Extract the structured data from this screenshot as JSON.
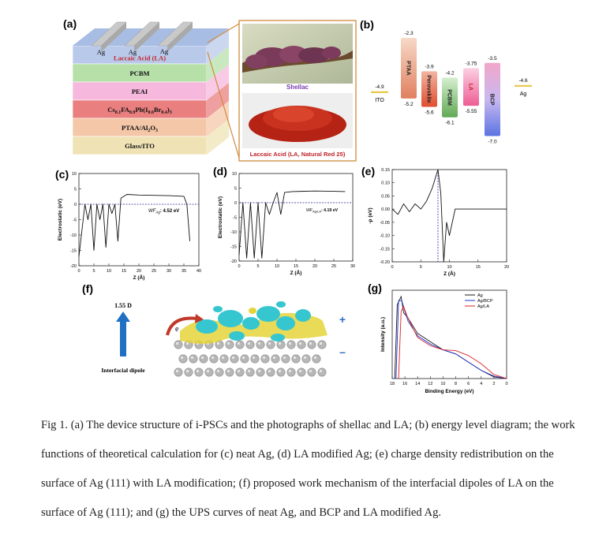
{
  "panels": {
    "a": {
      "tag": "(a)",
      "electrodes": [
        "Ag",
        "Ag",
        "Ag"
      ],
      "layers": [
        {
          "label": "Laccaic Acid (LA)",
          "color": "#b9c9ea",
          "text_color": "#c0252a"
        },
        {
          "label": "PCBM",
          "color": "#b7e0a9",
          "text_color": "#111111"
        },
        {
          "label": "PEAI",
          "color": "#f6b8dc",
          "text_color": "#111111"
        },
        {
          "label_parts": [
            "Cs",
            "0.1",
            "FA",
            "0.9",
            "Pb(I",
            "0.6",
            "Br",
            "0.4",
            ")",
            "3"
          ],
          "color": "#e97f7f",
          "text_color": "#111111"
        },
        {
          "label_parts": [
            "PTAA/Al",
            "2",
            "O",
            "3"
          ],
          "color": "#f4c7a8",
          "text_color": "#111111"
        },
        {
          "label": "Glass/ITO",
          "color": "#efe3b5",
          "text_color": "#111111"
        }
      ],
      "photo_labels": {
        "top": "Shellac",
        "bottom": "Laccaic Acid (LA, Natural Red 25)"
      }
    },
    "b": {
      "tag": "(b)",
      "levels": [
        {
          "name": "ITO",
          "top": -4.9,
          "bottom": null,
          "top_label": "-4.9",
          "color": "#e8c84a"
        },
        {
          "name": "PTAA",
          "top": -2.3,
          "bottom": -5.2,
          "top_label": "-2.3",
          "bottom_label": "-5.2",
          "color": "#e78d6c"
        },
        {
          "name": "Perovskite",
          "top": -3.9,
          "bottom": -5.6,
          "top_label": "-3.9",
          "bottom_label": "-5.6",
          "color": "#e65a3b"
        },
        {
          "name": "PCBM",
          "top": -4.2,
          "bottom": -6.1,
          "top_label": "-4.2",
          "bottom_label": "-6.1",
          "color": "#77b86b"
        },
        {
          "name": "LA",
          "top": -3.75,
          "bottom": -5.55,
          "top_label": "-3.75",
          "bottom_label": "-5.55",
          "color": "#f06fa0"
        },
        {
          "name": "BCP",
          "top": -3.5,
          "bottom": -7.0,
          "top_label": "-3.5",
          "bottom_label": "-7.0",
          "color": "#6c7fe0"
        },
        {
          "name": "Ag",
          "top": -4.6,
          "bottom": null,
          "top_label": "-4.6",
          "color": "#e8c84a"
        }
      ]
    },
    "c": {
      "tag": "(c)",
      "ylabel": "Electrostatic (eV)",
      "xlabel": "Z (Å)",
      "annotation": "WF",
      "annotation_sub": "Ag",
      "annotation_value": ": 4.52 eV",
      "xticks": [
        "0",
        "5",
        "10",
        "15",
        "20",
        "25",
        "30",
        "35",
        "40"
      ],
      "yticks": [
        "10",
        "5",
        "0",
        "-5",
        "-10",
        "-15",
        "-20"
      ]
    },
    "d": {
      "tag": "(d)",
      "ylabel": "Electrostatic (eV)",
      "xlabel": "Z (Å)",
      "annotation": "WF",
      "annotation_sub": "Ag/LA",
      "annotation_value": ": 4.19 eV",
      "xticks": [
        "0",
        "5",
        "10",
        "15",
        "20",
        "25",
        "30"
      ],
      "yticks": [
        "10",
        "5",
        "0",
        "-5",
        "-10",
        "-15",
        "-20"
      ]
    },
    "e": {
      "tag": "(e)",
      "ylabel": "-ρ (eV)",
      "xlabel": "Z (Å)",
      "xticks": [
        "0",
        "5",
        "10",
        "15",
        "20"
      ],
      "yticks": [
        "0.15",
        "0.10",
        "0.05",
        "0.00",
        "-0.05",
        "-0.10",
        "-0.15",
        "-0.20"
      ]
    },
    "f": {
      "tag": "(f)",
      "dipole_value": "1.55 D",
      "dipole_label": "Interfacial dipole",
      "electron": "e",
      "plus": "+",
      "minus": "–"
    },
    "g": {
      "tag": "(g)",
      "ylabel": "Intensity (a.u.)",
      "xlabel": "Binding Energy (eV)",
      "xticks": [
        "18",
        "16",
        "14",
        "12",
        "10",
        "8",
        "6",
        "4",
        "2",
        "0"
      ],
      "legend": [
        {
          "name": "Ag",
          "color": "#1a1a1a"
        },
        {
          "name": "Ag/BCP",
          "color": "#2233cc"
        },
        {
          "name": "Ag/LA",
          "color": "#dd2222"
        }
      ]
    }
  },
  "chart_data": [
    {
      "type": "line",
      "panel": "c",
      "x": [
        0,
        2,
        3,
        4,
        5,
        6,
        7,
        8,
        9,
        10,
        11,
        12,
        13,
        14,
        16,
        20,
        25,
        30,
        35,
        36,
        37
      ],
      "y": [
        -17,
        0,
        -5,
        0,
        -15,
        0,
        -5,
        0,
        -14,
        0,
        -3,
        0,
        -12,
        2,
        3.2,
        3,
        2.9,
        2.8,
        2.6,
        0,
        -12
      ],
      "xlim": [
        0,
        40
      ],
      "ylim": [
        -20,
        10
      ],
      "reference_y": 0
    },
    {
      "type": "line",
      "panel": "d",
      "x": [
        0,
        1,
        2,
        3,
        4,
        5,
        6,
        7,
        8,
        9,
        10,
        11,
        12,
        14,
        20,
        25,
        28
      ],
      "y": [
        -18,
        0,
        -19,
        0,
        -19,
        0,
        -19,
        0,
        -4,
        0,
        3.5,
        -4,
        3.5,
        3.8,
        4,
        3.9,
        3.8
      ],
      "xlim": [
        0,
        30
      ],
      "ylim": [
        -20,
        10
      ],
      "reference_y": 0
    },
    {
      "type": "line",
      "panel": "e",
      "x": [
        0,
        1,
        2,
        3,
        4,
        5,
        6,
        7,
        8,
        8.5,
        9,
        9.5,
        10,
        11,
        12,
        20
      ],
      "y": [
        0,
        -0.02,
        0.02,
        -0.01,
        0.02,
        0.0,
        0.03,
        0.08,
        0.15,
        0.06,
        -0.2,
        -0.05,
        -0.1,
        0,
        0,
        0
      ],
      "xlim": [
        0,
        20
      ],
      "ylim": [
        -0.2,
        0.15
      ],
      "reference_x": 8
    },
    {
      "type": "line",
      "panel": "g",
      "x_reversed": true,
      "xlim": [
        18,
        0
      ],
      "series": [
        {
          "name": "Ag",
          "x": [
            17.6,
            17.2,
            16.6,
            16.2,
            15.6,
            14,
            12,
            10,
            8,
            6,
            4,
            2,
            0
          ],
          "y": [
            0,
            0.9,
            1.0,
            0.8,
            0.75,
            0.55,
            0.45,
            0.35,
            0.3,
            0.2,
            0.1,
            0.02,
            0
          ]
        },
        {
          "name": "Ag/BCP",
          "x": [
            17.4,
            17.0,
            16.5,
            16.0,
            15.5,
            14,
            12,
            10,
            8,
            6,
            4,
            2,
            0
          ],
          "y": [
            0,
            0.95,
            0.95,
            0.82,
            0.7,
            0.52,
            0.42,
            0.35,
            0.3,
            0.2,
            0.1,
            0.03,
            0
          ]
        },
        {
          "name": "Ag/LA",
          "x": [
            17.0,
            16.6,
            16.2,
            15.6,
            14,
            12,
            10,
            8,
            6,
            4,
            2,
            0
          ],
          "y": [
            0,
            0.82,
            0.88,
            0.75,
            0.5,
            0.4,
            0.35,
            0.34,
            0.28,
            0.18,
            0.05,
            0
          ]
        }
      ]
    }
  ],
  "caption": "Fig 1. (a) The device structure of i-PSCs and the photographs of shellac and LA; (b) energy level diagram; the work functions of theoretical calculation for (c) neat Ag, (d) LA modified Ag; (e) charge density redistribution on the surface of Ag (111) with LA modification; (f) proposed work mechanism of the interfacial dipoles of LA on the surface of Ag (111); and (g) the UPS curves of neat Ag, and BCP and LA modified Ag."
}
